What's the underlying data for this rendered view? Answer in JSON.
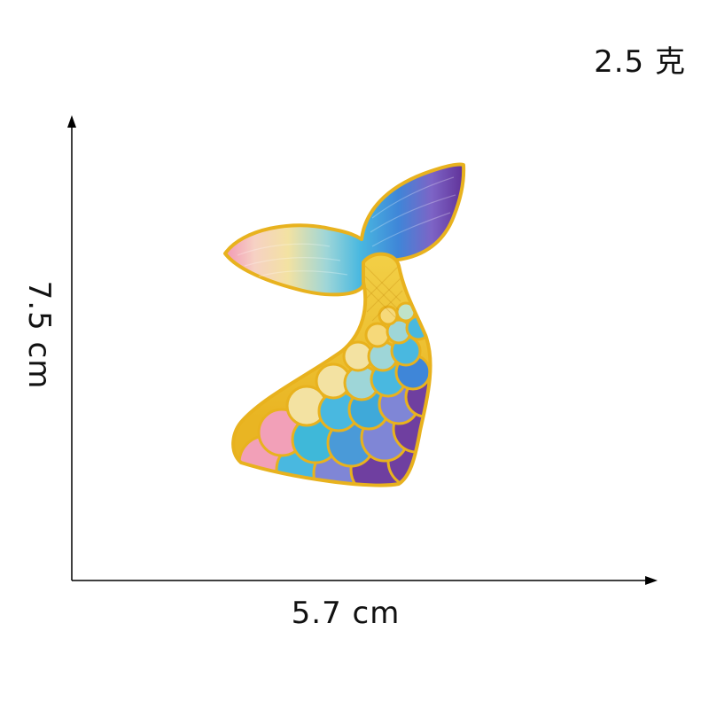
{
  "product": {
    "weight_label": "2.5 克",
    "width_label": "5.7 cm",
    "height_label": "7.5 cm",
    "subject": "embroidered mermaid tail patch"
  },
  "colors": {
    "outline_gold": "#e8b21e",
    "pink": "#f2a0b8",
    "cream": "#f3e2a2",
    "sky": "#49b8e0",
    "blue": "#3f86d8",
    "periwinkle": "#7f86d6",
    "purple": "#6f3fa0",
    "gold_fill": "#f2c93a"
  }
}
